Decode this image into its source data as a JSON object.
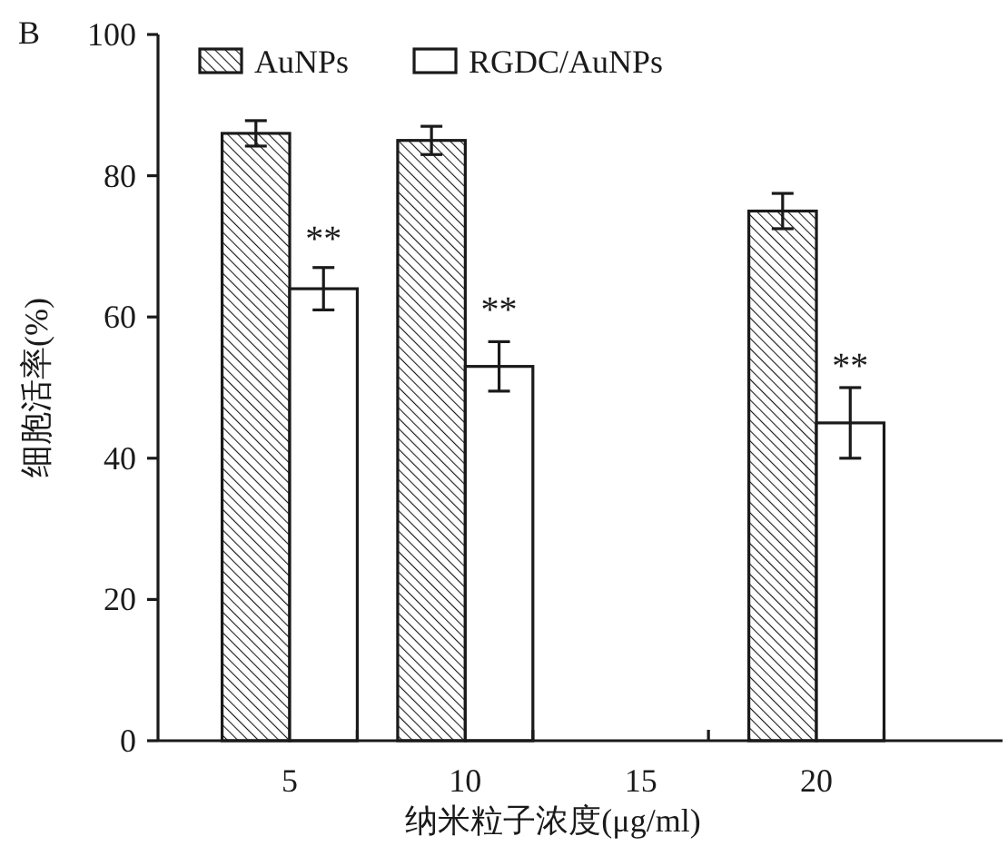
{
  "chart_data": {
    "type": "bar",
    "title": "B",
    "xlabel": "纳米粒子浓度(μg/ml)",
    "ylabel": "细胞活率(%)",
    "categories": [
      "5",
      "10",
      "15",
      "20"
    ],
    "series": [
      {
        "name": "AuNPs",
        "color": "#1a1a1a",
        "values": [
          86,
          85,
          null,
          75
        ],
        "errors": [
          1.8,
          2,
          null,
          2.5
        ]
      },
      {
        "name": "RGDC/AuNPs",
        "color": "#ffffff",
        "values": [
          64,
          53,
          null,
          45
        ],
        "errors": [
          3,
          3.5,
          null,
          5
        ]
      }
    ],
    "annotations": [
      {
        "text": "**",
        "x": "5",
        "y": 72
      },
      {
        "text": "**",
        "x": "10",
        "y": 62
      },
      {
        "text": "**",
        "x": "20",
        "y": 54
      }
    ],
    "ylim": [
      0,
      100
    ],
    "yticks": [
      0,
      20,
      40,
      60,
      80,
      100
    ],
    "legend": "top",
    "grid": false
  }
}
